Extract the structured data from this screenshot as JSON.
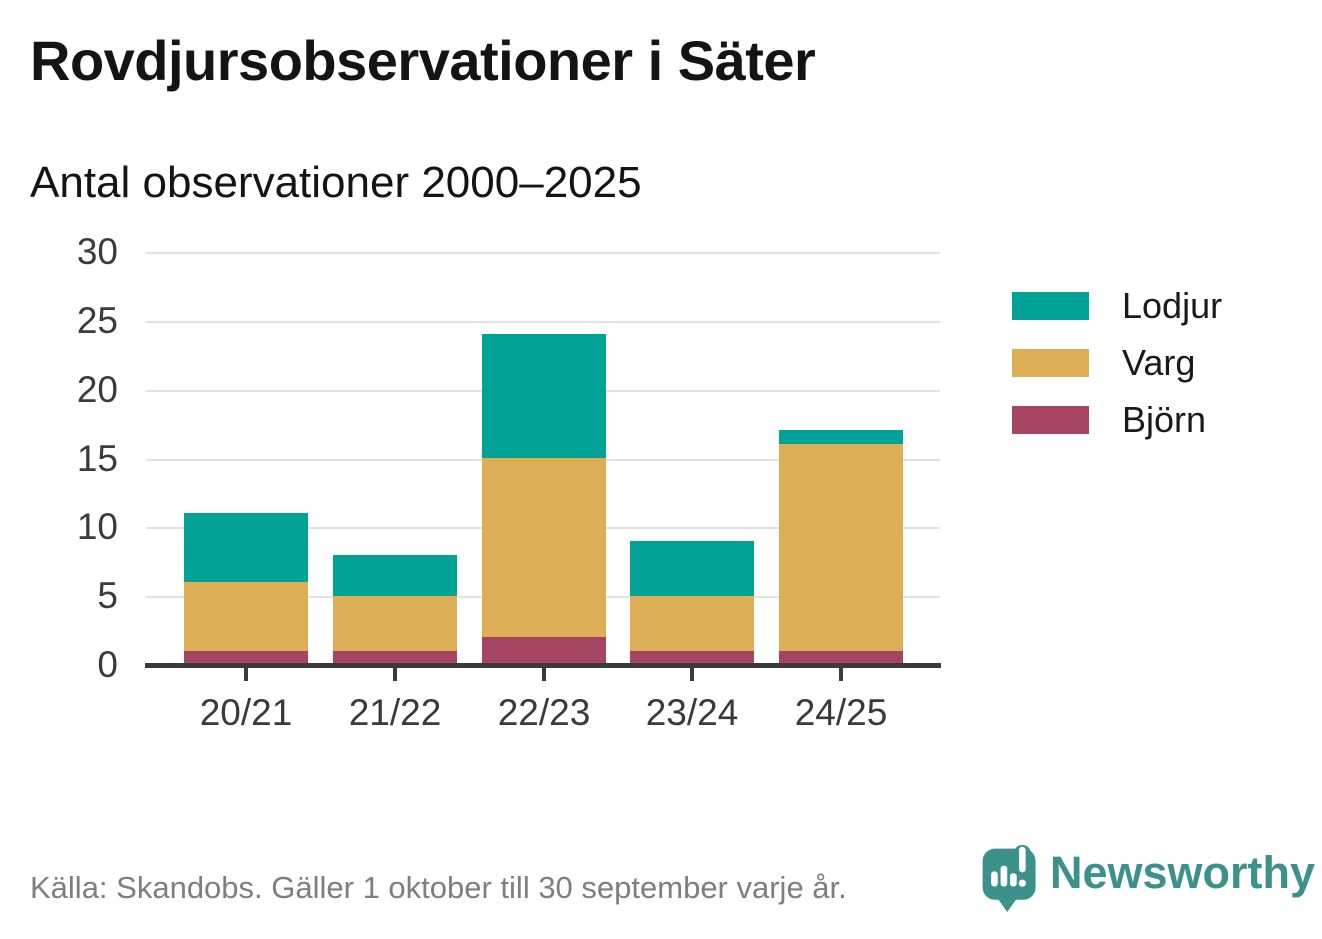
{
  "title": "Rovdjursobservationer i Säter",
  "subtitle": "Antal observationer 2000–2025",
  "footer": {
    "source": "Källa: Skandobs. Gäller 1 oktober till 30 september varje år.",
    "brand": "Newsworthy"
  },
  "colors": {
    "lodjur": "#00a396",
    "varg": "#dcae56",
    "bjorn": "#a54562",
    "gridline": "#e2e2e2",
    "axis_line": "#3a3a3a",
    "axis_text": "#3a3a3a",
    "source_text": "#7e7e7e",
    "brand_teal": "#3d918b",
    "title_text": "#141414"
  },
  "chart_data": {
    "type": "bar",
    "stacked": true,
    "title": "Rovdjursobservationer i Säter",
    "subtitle": "Antal observationer 2000–2025",
    "categories": [
      "20/21",
      "21/22",
      "22/23",
      "23/24",
      "24/25"
    ],
    "series": [
      {
        "name": "Björn",
        "color": "#a54562",
        "values": [
          1,
          1,
          2,
          1,
          1
        ]
      },
      {
        "name": "Varg",
        "color": "#dcae56",
        "values": [
          5,
          4,
          13,
          4,
          15
        ]
      },
      {
        "name": "Lodjur",
        "color": "#00a396",
        "values": [
          5,
          3,
          9,
          4,
          1
        ]
      }
    ],
    "totals": [
      11,
      8,
      24,
      9,
      17
    ],
    "xlabel": "",
    "ylabel": "",
    "ylim": [
      0,
      30
    ],
    "yticks": [
      0,
      5,
      10,
      15,
      20,
      25,
      30
    ],
    "grid": true,
    "legend": [
      {
        "label": "Lodjur",
        "color": "#00a396"
      },
      {
        "label": "Varg",
        "color": "#dcae56"
      },
      {
        "label": "Björn",
        "color": "#a54562"
      }
    ],
    "legend_position": "right"
  }
}
